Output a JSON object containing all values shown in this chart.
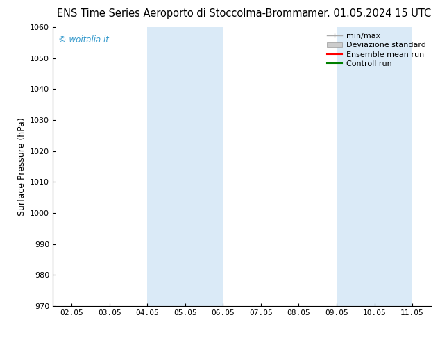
{
  "title_left": "ENS Time Series Aeroporto di Stoccolma-Bromma",
  "title_right": "mer. 01.05.2024 15 UTC",
  "xlabel": "",
  "ylabel": "Surface Pressure (hPa)",
  "ylim": [
    970,
    1060
  ],
  "yticks": [
    970,
    980,
    990,
    1000,
    1010,
    1020,
    1030,
    1040,
    1050,
    1060
  ],
  "x_tick_labels": [
    "02.05",
    "03.05",
    "04.05",
    "05.05",
    "06.05",
    "07.05",
    "08.05",
    "09.05",
    "10.05",
    "11.05"
  ],
  "x_tick_positions": [
    0,
    1,
    2,
    3,
    4,
    5,
    6,
    7,
    8,
    9
  ],
  "xlim": [
    -0.5,
    9.5
  ],
  "shaded_bands": [
    {
      "x_start": 2,
      "x_end": 4,
      "color": "#daeaf7"
    },
    {
      "x_start": 7,
      "x_end": 9,
      "color": "#daeaf7"
    }
  ],
  "legend_entries": [
    {
      "label": "min/max",
      "color": "#aaaaaa",
      "lw": 1.0,
      "style": "minmax"
    },
    {
      "label": "Deviazione standard",
      "color": "#cccccc",
      "lw": 6,
      "style": "band"
    },
    {
      "label": "Ensemble mean run",
      "color": "red",
      "lw": 1.5,
      "style": "line"
    },
    {
      "label": "Controll run",
      "color": "green",
      "lw": 1.5,
      "style": "line"
    }
  ],
  "watermark": "© woitalia.it",
  "watermark_color": "#3399cc",
  "background_color": "#ffffff",
  "plot_bg_color": "#ffffff",
  "title_fontsize": 10.5,
  "axis_label_fontsize": 9,
  "tick_fontsize": 8,
  "legend_fontsize": 8,
  "figsize": [
    6.34,
    4.9
  ],
  "dpi": 100
}
